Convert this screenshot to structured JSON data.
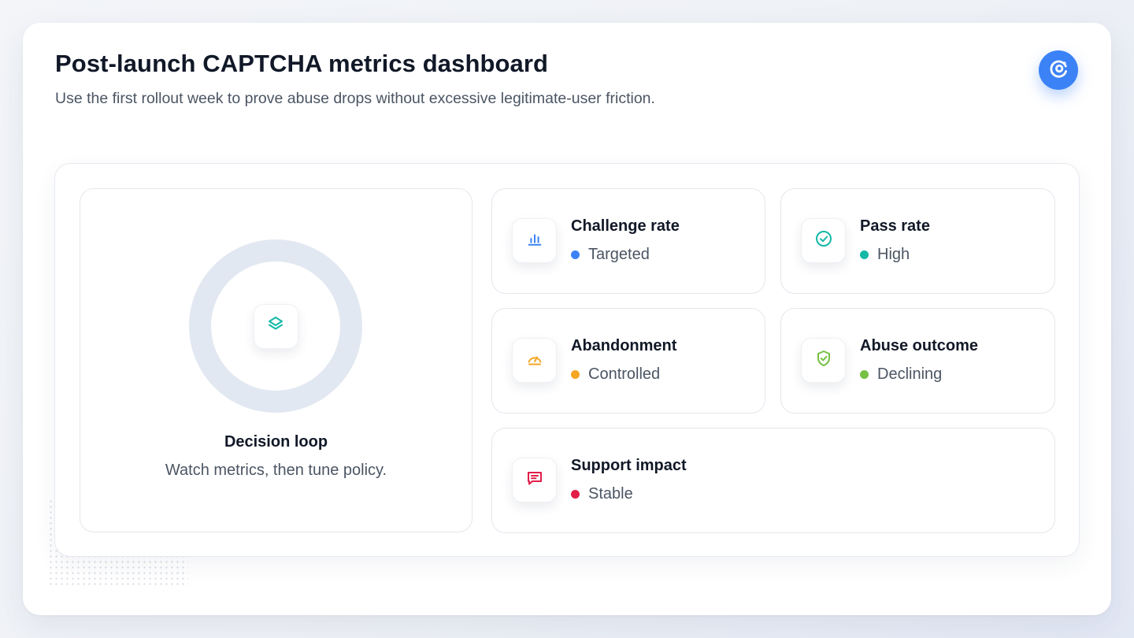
{
  "header": {
    "title": "Post-launch CAPTCHA metrics dashboard",
    "subtitle": "Use the first rollout week to prove abuse drops without excessive legitimate-user friction.",
    "brand_icon": "refresh-target-icon"
  },
  "decision_loop": {
    "title": "Decision loop",
    "subtitle": "Watch metrics, then tune policy.",
    "icon": "layers-icon",
    "icon_color": "#14b8a6",
    "ring_color": "#e2e8f1"
  },
  "metrics": [
    {
      "title": "Challenge rate",
      "status": "Targeted",
      "icon": "bar-chart-icon",
      "color": "#3b82f6"
    },
    {
      "title": "Pass rate",
      "status": "High",
      "icon": "check-circle-icon",
      "color": "#14b8a6"
    },
    {
      "title": "Abandonment",
      "status": "Controlled",
      "icon": "gauge-icon",
      "color": "#f5a524"
    },
    {
      "title": "Abuse outcome",
      "status": "Declining",
      "icon": "shield-check-icon",
      "color": "#76c043"
    },
    {
      "title": "Support impact",
      "status": "Stable",
      "icon": "message-square-icon",
      "color": "#e11d48"
    }
  ],
  "colors": {
    "brand": "#3b82f6",
    "text_primary": "#111827",
    "text_secondary": "#4b5563"
  }
}
